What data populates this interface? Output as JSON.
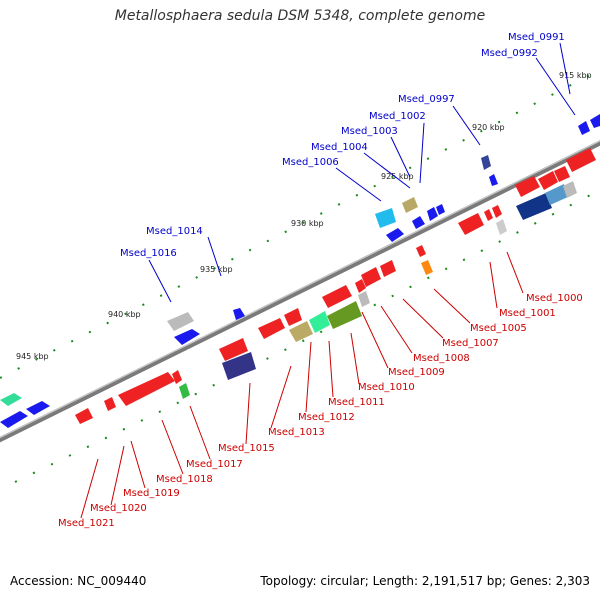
{
  "header": {
    "title": "Metallosphaera sedula DSM 5348, complete genome"
  },
  "footer": {
    "accession": "Accession: NC_009440",
    "summary": "Topology: circular; Length: 2,191,517 bp; Genes: 2,303"
  },
  "colors": {
    "background": "#ffffff",
    "backbone": "#808080",
    "forward_label": "#0000cc",
    "reverse_label": "#cc0000",
    "tick": "#008000"
  },
  "scale_labels": [
    "915 kbp",
    "920 kbp",
    "925 kbp",
    "930 kbp",
    "935 kbp",
    "940 kbp",
    "945 kbp"
  ],
  "gene_labels_forward": [
    "Msed_0991",
    "Msed_0992",
    "Msed_0997",
    "Msed_1002",
    "Msed_1003",
    "Msed_1004",
    "Msed_1006",
    "Msed_1014",
    "Msed_1016"
  ],
  "gene_labels_reverse": [
    "Msed_1000",
    "Msed_1001",
    "Msed_1005",
    "Msed_1007",
    "Msed_1008",
    "Msed_1009",
    "Msed_1010",
    "Msed_1011",
    "Msed_1012",
    "Msed_1013",
    "Msed_1015",
    "Msed_1017",
    "Msed_1018",
    "Msed_1019",
    "Msed_1020",
    "Msed_1021"
  ]
}
